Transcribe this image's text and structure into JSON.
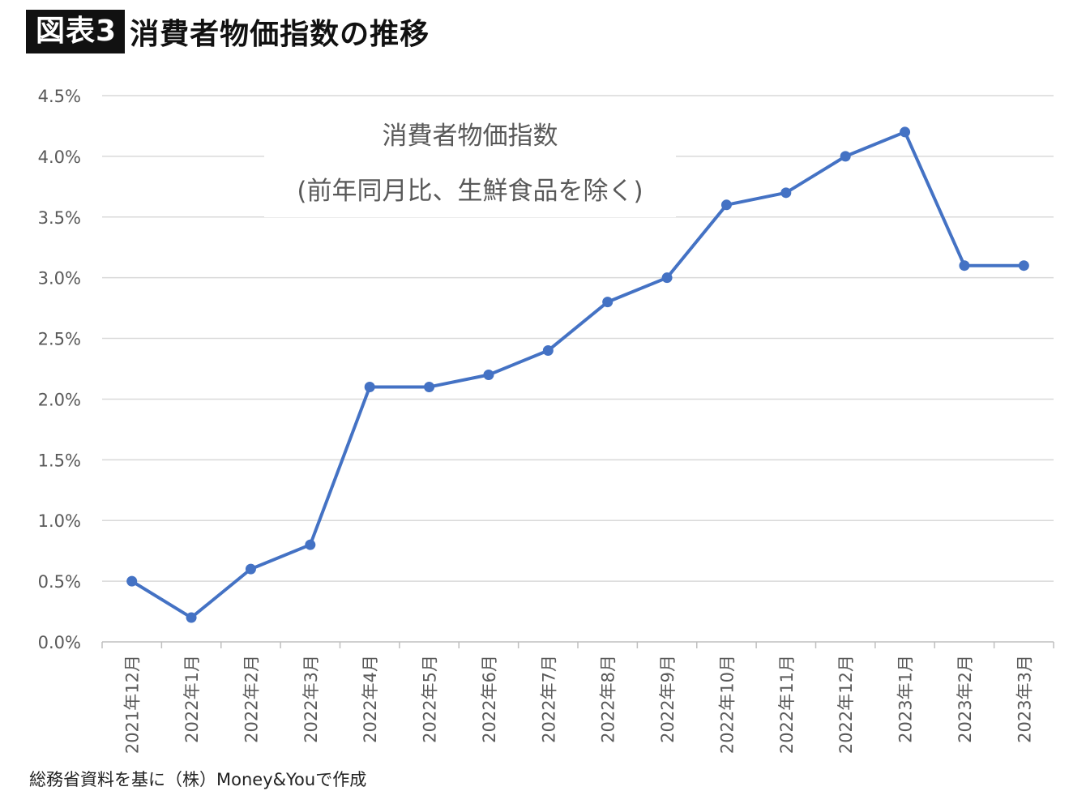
{
  "header": {
    "badge": "図表3",
    "title": "消費者物価指数の推移"
  },
  "chart_data": {
    "type": "line",
    "title_lines": [
      "消費者物価指数",
      "(前年同月比、生鮮食品を除く)"
    ],
    "categories": [
      "2021年12月",
      "2022年1月",
      "2022年2月",
      "2022年3月",
      "2022年4月",
      "2022年5月",
      "2022年6月",
      "2022年7月",
      "2022年8月",
      "2022年9月",
      "2022年10月",
      "2022年11月",
      "2022年12月",
      "2023年1月",
      "2023年2月",
      "2023年3月"
    ],
    "series": [
      {
        "values": [
          0.5,
          0.2,
          0.6,
          0.8,
          2.1,
          2.1,
          2.2,
          2.4,
          2.8,
          3.0,
          3.6,
          3.7,
          4.0,
          4.2,
          3.1,
          3.1
        ]
      }
    ],
    "ylim": [
      0,
      4.5
    ],
    "yticks": [
      "0.0%",
      "0.5%",
      "1.0%",
      "1.5%",
      "2.0%",
      "2.5%",
      "3.0%",
      "3.5%",
      "4.0%",
      "4.5%"
    ],
    "ytick_values": [
      0,
      0.5,
      1.0,
      1.5,
      2.0,
      2.5,
      3.0,
      3.5,
      4.0,
      4.5
    ],
    "grid": true,
    "line_color": "#4472C4",
    "grid_color": "#D9D9D9",
    "axis_color": "#BFBFBF"
  },
  "source": "総務省資料を基に（株）Money&Youで作成"
}
